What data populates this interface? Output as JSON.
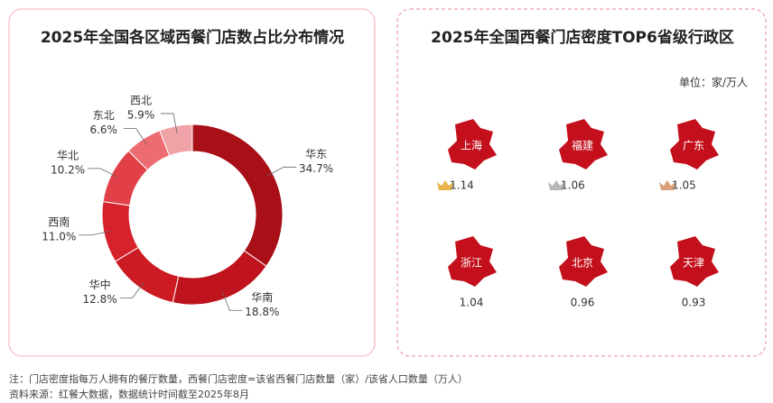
{
  "chart_data": [
    {
      "type": "pie",
      "title": "2025年全国各区域西餐门店数占比分布情况",
      "categories": [
        "华东",
        "华南",
        "华中",
        "西南",
        "华北",
        "东北",
        "西北"
      ],
      "values": [
        34.7,
        18.8,
        12.8,
        11.0,
        10.2,
        6.6,
        5.9
      ],
      "value_labels": [
        "34.7%",
        "18.8%",
        "12.8%",
        "11.0%",
        "10.2%",
        "6.6%",
        "5.9%"
      ],
      "colors": [
        "#a80f16",
        "#bf141d",
        "#cc1b22",
        "#d6232b",
        "#e24049",
        "#ec6c72",
        "#f0a3a6"
      ],
      "donut": true
    }
  ],
  "ranking": {
    "title": "2025年全国西餐门店密度TOP6省级行政区",
    "unit": "单位：家/万人",
    "items": [
      {
        "name": "上海",
        "value": 1.14
      },
      {
        "name": "福建",
        "value": 1.06
      },
      {
        "name": "广东",
        "value": 1.05
      },
      {
        "name": "浙江",
        "value": 1.04
      },
      {
        "name": "北京",
        "value": 0.96
      },
      {
        "name": "天津",
        "value": 0.93
      }
    ]
  },
  "notes": [
    "注：门店密度指每万人拥有的餐厅数量，西餐门店密度=该省西餐门店数量（家）/该省人口数量（万人）",
    "资料来源：红餐大数据，数据统计时间截至2025年8月"
  ]
}
